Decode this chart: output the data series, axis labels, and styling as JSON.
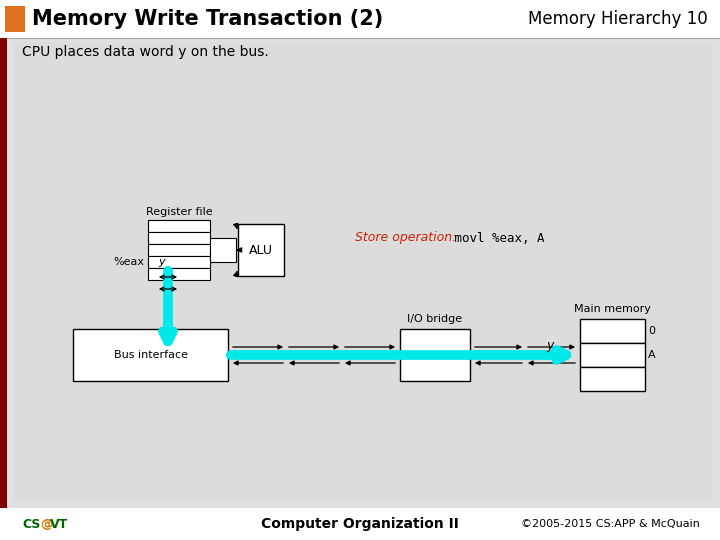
{
  "title": "Memory Write Transaction (2)",
  "subtitle": "Memory Hierarchy 10",
  "description": "CPU places data word y on the bus.",
  "store_op_red": "Store operation:",
  "store_op_code": " movl %eax, A",
  "bg_color": "#e0e0e0",
  "header_bg": "#ffffff",
  "orange_rect": "#e07020",
  "dark_red_left": "#800000",
  "footer_bg": "#ffffff",
  "footer_left": "CS@VT",
  "footer_center": "Computer Organization II",
  "footer_right": "©2005-2015 CS:APP & McQuain",
  "cyan_color": "#00e8e8",
  "black": "#000000",
  "red_text": "#cc2200",
  "green_text": "#006600",
  "orange_text": "#cc7700"
}
